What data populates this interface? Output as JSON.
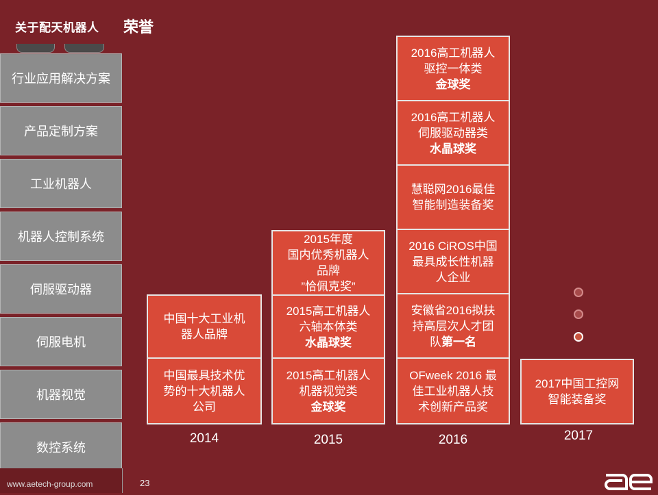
{
  "header": {
    "company": "关于配天机器人",
    "title": "荣誉"
  },
  "sidebar": {
    "items": [
      {
        "label": "行业应用解决方案"
      },
      {
        "label": "产品定制方案"
      },
      {
        "label": "工业机器人"
      },
      {
        "label": "机器人控制系统"
      },
      {
        "label": "伺服驱动器"
      },
      {
        "label": "伺服电机"
      },
      {
        "label": "机器视觉"
      },
      {
        "label": "数控系统"
      }
    ]
  },
  "awards": {
    "y2014": {
      "year": "2014",
      "top": {
        "l1": "中国十大工业机",
        "l2": "器人品牌"
      },
      "bottom": {
        "l1": "中国最具技术优",
        "l2": "势的十大机器人",
        "l3": "公司"
      }
    },
    "y2015": {
      "year": "2015",
      "top": {
        "l1": "2015年度",
        "l2": "国内优秀机器人",
        "l3": "品牌",
        "l4": "”恰佩克奖”"
      },
      "middle": {
        "l1": "2015高工机器人",
        "l2": "六轴本体类",
        "prize": "水晶球奖"
      },
      "bottom": {
        "l1": "2015高工机器人",
        "l2": "机器视觉类",
        "prize": "金球奖"
      }
    },
    "y2016": {
      "year": "2016",
      "a": {
        "l1": "2016高工机器人",
        "l2": "驱控一体类",
        "prize": "金球奖"
      },
      "b": {
        "l1": "2016高工机器人",
        "l2": "伺服驱动器类",
        "prize": "水晶球奖"
      },
      "c": {
        "l1": "慧聪网2016最佳",
        "l2": "智能制造装备奖"
      },
      "d": {
        "l1": "2016 CiROS中国",
        "l2": "最具成长性机器",
        "l3": "人企业"
      },
      "e": {
        "l1": "安徽省2016拟扶",
        "l2": "持高层次人才团",
        "l3": "队",
        "prize": "第一名"
      },
      "f": {
        "l1": "OFweek 2016 最",
        "l2": "佳工业机器人技",
        "l3": "术创新产品奖"
      }
    },
    "y2017": {
      "year": "2017",
      "a": {
        "l1": "2017中国工控网",
        "l2": "智能装备奖"
      }
    }
  },
  "pager": {
    "count": 3,
    "active_index": 2
  },
  "footer": {
    "site": "www.aetech-group.com",
    "page_number": "23",
    "logo_text": "ae"
  },
  "colors": {
    "background": "#7a2228",
    "award_box": "#d94a38",
    "sidebar": "#8c8c8c"
  }
}
